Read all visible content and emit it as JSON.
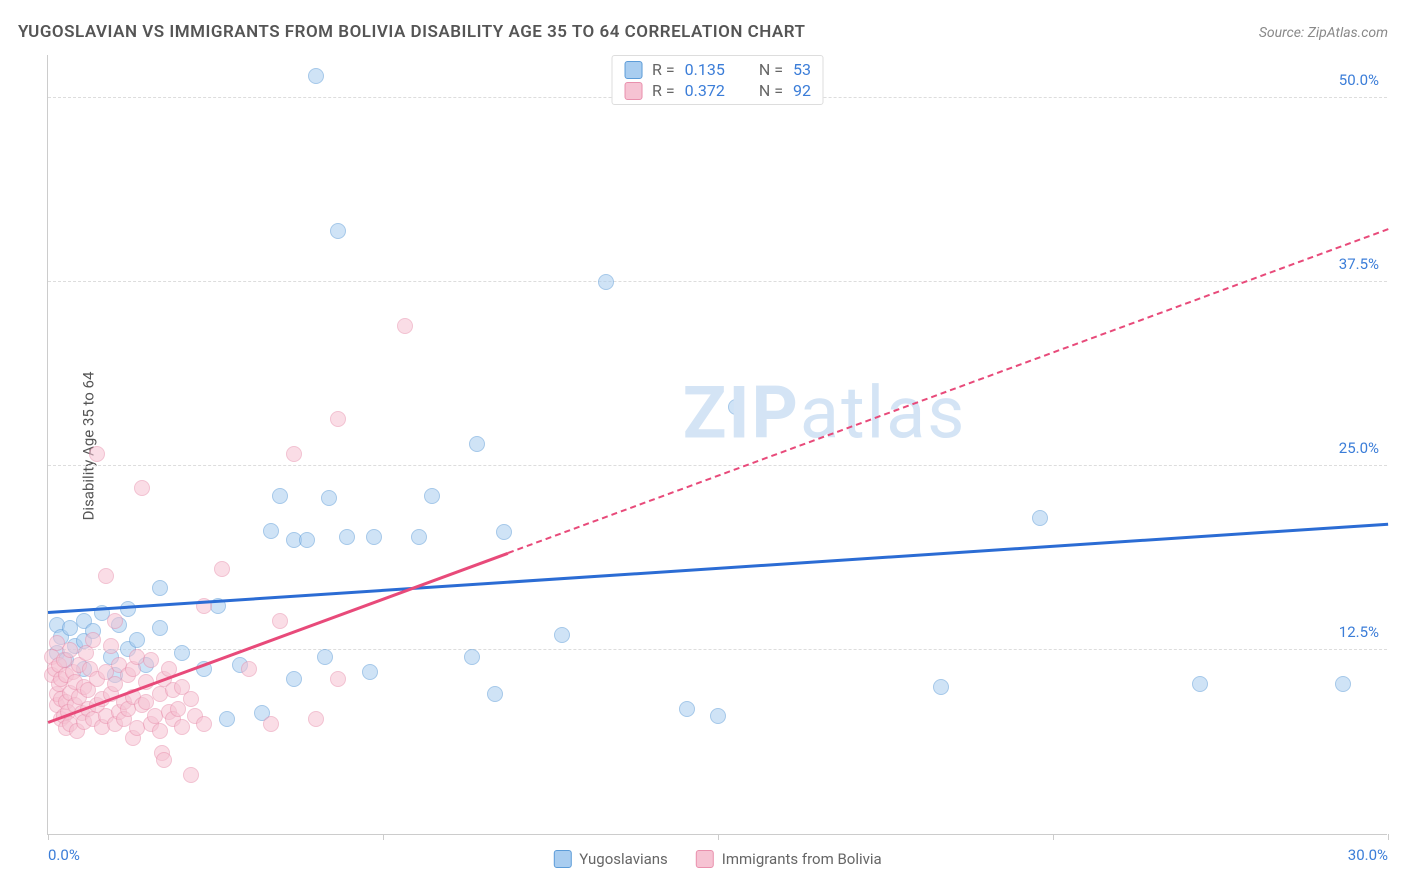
{
  "header": {
    "title": "YUGOSLAVIAN VS IMMIGRANTS FROM BOLIVIA DISABILITY AGE 35 TO 64 CORRELATION CHART",
    "source": "Source: ZipAtlas.com"
  },
  "chart": {
    "type": "scatter",
    "ylabel": "Disability Age 35 to 64",
    "xlim": [
      0,
      30
    ],
    "ylim": [
      0,
      53
    ],
    "x_ticks": [
      0,
      7.5,
      15,
      22.5,
      30
    ],
    "x_labels_shown": {
      "0": "0.0%",
      "30": "30.0%"
    },
    "y_ticks": [
      12.5,
      25.0,
      37.5,
      50.0
    ],
    "y_tick_format": "{v}%",
    "grid_color": "#dddddd",
    "axis_color": "#cccccc",
    "background_color": "#ffffff",
    "tick_label_color": "#3b7dd8",
    "label_fontsize": 15,
    "point_radius": 8,
    "point_opacity": 0.55,
    "series": [
      {
        "name": "Yugoslavians",
        "color_fill": "#a9cdf0",
        "color_stroke": "#5d9cd8",
        "R": "0.135",
        "N": "53",
        "trend": {
          "x1": 0,
          "y1": 15.0,
          "x2": 30,
          "y2": 21.0,
          "color": "#2b6cd4",
          "dashed_after_x": null
        },
        "points": [
          [
            0.2,
            14.2
          ],
          [
            0.2,
            12.3
          ],
          [
            0.3,
            13.4
          ],
          [
            0.4,
            11.8
          ],
          [
            0.5,
            14.0
          ],
          [
            0.6,
            12.8
          ],
          [
            0.8,
            13.1
          ],
          [
            0.8,
            11.2
          ],
          [
            0.8,
            14.5
          ],
          [
            1.0,
            13.8
          ],
          [
            1.2,
            15.0
          ],
          [
            1.4,
            12.0
          ],
          [
            1.5,
            10.8
          ],
          [
            1.6,
            14.2
          ],
          [
            1.8,
            12.6
          ],
          [
            1.8,
            15.3
          ],
          [
            2.0,
            13.2
          ],
          [
            2.2,
            11.5
          ],
          [
            2.5,
            16.7
          ],
          [
            2.5,
            14.0
          ],
          [
            3.0,
            12.3
          ],
          [
            3.5,
            11.2
          ],
          [
            3.8,
            15.5
          ],
          [
            4.0,
            7.8
          ],
          [
            4.3,
            11.5
          ],
          [
            4.8,
            8.2
          ],
          [
            5.0,
            20.6
          ],
          [
            5.2,
            23.0
          ],
          [
            5.5,
            20.0
          ],
          [
            5.5,
            10.5
          ],
          [
            5.8,
            20.0
          ],
          [
            6.0,
            51.5
          ],
          [
            6.2,
            12.0
          ],
          [
            6.3,
            22.8
          ],
          [
            6.5,
            41.0
          ],
          [
            6.7,
            20.2
          ],
          [
            7.2,
            11.0
          ],
          [
            7.3,
            20.2
          ],
          [
            8.3,
            20.2
          ],
          [
            8.6,
            23.0
          ],
          [
            9.5,
            12.0
          ],
          [
            9.6,
            26.5
          ],
          [
            10.0,
            9.5
          ],
          [
            10.2,
            20.5
          ],
          [
            11.5,
            13.5
          ],
          [
            12.5,
            37.5
          ],
          [
            14.3,
            8.5
          ],
          [
            15.0,
            8.0
          ],
          [
            15.4,
            29.0
          ],
          [
            20.0,
            10.0
          ],
          [
            22.2,
            21.5
          ],
          [
            25.8,
            10.2
          ],
          [
            29.0,
            10.2
          ]
        ]
      },
      {
        "name": "Immigrants from Bolivia",
        "color_fill": "#f6c3d3",
        "color_stroke": "#e990ad",
        "R": "0.372",
        "N": "92",
        "trend": {
          "x1": 0,
          "y1": 7.5,
          "x2": 30,
          "y2": 41.0,
          "color": "#e84a7a",
          "dashed_after_x": 10.3
        },
        "points": [
          [
            0.1,
            10.8
          ],
          [
            0.1,
            12.0
          ],
          [
            0.15,
            11.2
          ],
          [
            0.2,
            8.8
          ],
          [
            0.2,
            9.5
          ],
          [
            0.2,
            13.0
          ],
          [
            0.25,
            10.2
          ],
          [
            0.25,
            11.5
          ],
          [
            0.3,
            7.8
          ],
          [
            0.3,
            9.2
          ],
          [
            0.3,
            10.5
          ],
          [
            0.35,
            8.0
          ],
          [
            0.35,
            11.8
          ],
          [
            0.4,
            7.2
          ],
          [
            0.4,
            9.0
          ],
          [
            0.4,
            10.8
          ],
          [
            0.45,
            8.3
          ],
          [
            0.5,
            12.5
          ],
          [
            0.5,
            9.6
          ],
          [
            0.5,
            7.5
          ],
          [
            0.55,
            11.0
          ],
          [
            0.6,
            8.8
          ],
          [
            0.6,
            10.3
          ],
          [
            0.65,
            7.0
          ],
          [
            0.7,
            9.3
          ],
          [
            0.7,
            11.5
          ],
          [
            0.75,
            8.2
          ],
          [
            0.8,
            10.0
          ],
          [
            0.8,
            7.6
          ],
          [
            0.85,
            12.3
          ],
          [
            0.9,
            8.5
          ],
          [
            0.9,
            9.8
          ],
          [
            0.95,
            11.2
          ],
          [
            1.0,
            7.8
          ],
          [
            1.0,
            13.2
          ],
          [
            1.1,
            8.8
          ],
          [
            1.1,
            10.5
          ],
          [
            1.1,
            25.8
          ],
          [
            1.2,
            9.2
          ],
          [
            1.2,
            7.3
          ],
          [
            1.3,
            17.5
          ],
          [
            1.3,
            11.0
          ],
          [
            1.3,
            8.0
          ],
          [
            1.4,
            9.5
          ],
          [
            1.4,
            12.8
          ],
          [
            1.5,
            7.5
          ],
          [
            1.5,
            10.2
          ],
          [
            1.5,
            14.5
          ],
          [
            1.6,
            8.3
          ],
          [
            1.6,
            11.5
          ],
          [
            1.7,
            9.0
          ],
          [
            1.7,
            7.8
          ],
          [
            1.8,
            10.8
          ],
          [
            1.8,
            8.5
          ],
          [
            1.9,
            11.2
          ],
          [
            1.9,
            9.3
          ],
          [
            1.9,
            6.5
          ],
          [
            2.0,
            12.0
          ],
          [
            2.0,
            7.2
          ],
          [
            2.1,
            8.8
          ],
          [
            2.1,
            23.5
          ],
          [
            2.2,
            10.3
          ],
          [
            2.2,
            9.0
          ],
          [
            2.3,
            7.5
          ],
          [
            2.3,
            11.8
          ],
          [
            2.4,
            8.0
          ],
          [
            2.5,
            9.5
          ],
          [
            2.5,
            7.0
          ],
          [
            2.55,
            5.5
          ],
          [
            2.6,
            10.5
          ],
          [
            2.6,
            5.0
          ],
          [
            2.7,
            8.3
          ],
          [
            2.7,
            11.2
          ],
          [
            2.8,
            7.8
          ],
          [
            2.8,
            9.8
          ],
          [
            2.9,
            8.5
          ],
          [
            3.0,
            10.0
          ],
          [
            3.0,
            7.3
          ],
          [
            3.2,
            4.0
          ],
          [
            3.2,
            9.2
          ],
          [
            3.3,
            8.0
          ],
          [
            3.5,
            15.5
          ],
          [
            3.5,
            7.5
          ],
          [
            3.9,
            18.0
          ],
          [
            4.5,
            11.2
          ],
          [
            5.0,
            7.5
          ],
          [
            5.2,
            14.5
          ],
          [
            5.5,
            25.8
          ],
          [
            6.0,
            7.8
          ],
          [
            6.5,
            10.5
          ],
          [
            6.5,
            28.2
          ],
          [
            8.0,
            34.5
          ]
        ]
      }
    ],
    "legend_bottom": [
      {
        "label": "Yugoslavians",
        "fill": "#a9cdf0",
        "stroke": "#5d9cd8"
      },
      {
        "label": "Immigrants from Bolivia",
        "fill": "#f6c3d3",
        "stroke": "#e990ad"
      }
    ],
    "watermark": {
      "text_bold": "ZIP",
      "text_rest": "atlas",
      "color": "#d4e4f5"
    }
  }
}
